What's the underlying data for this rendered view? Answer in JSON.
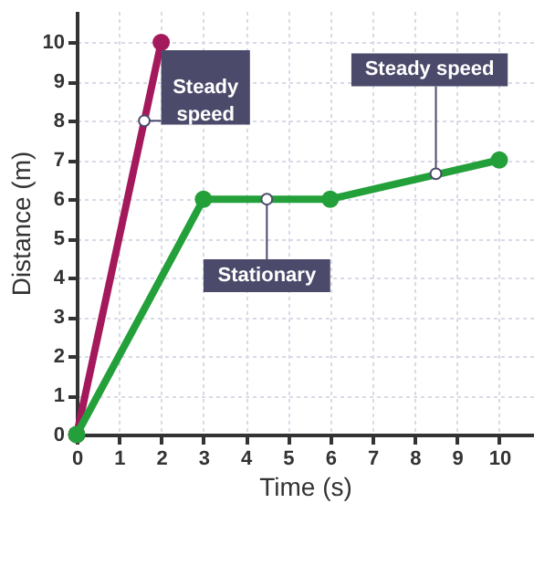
{
  "chart_data": {
    "type": "line",
    "xlabel": "Time (s)",
    "ylabel": "Distance (m)",
    "series": [
      {
        "color": "#a3195b",
        "x": [
          0,
          2
        ],
        "values": [
          0,
          10
        ]
      },
      {
        "color": "#23a03a",
        "x": [
          0,
          3,
          6,
          10
        ],
        "values": [
          0,
          6,
          6,
          7
        ]
      }
    ],
    "xlim": [
      0,
      10.8
    ],
    "ylim": [
      0,
      10.8
    ],
    "xticks": [
      0,
      1,
      2,
      3,
      4,
      5,
      6,
      7,
      8,
      9,
      10
    ],
    "yticks": [
      0,
      1,
      2,
      3,
      4,
      5,
      6,
      7,
      8,
      9,
      10
    ],
    "grid": true,
    "marker": "circle",
    "line_style": "solid",
    "annotations": [
      {
        "text": "Steady speed",
        "x": 1.6,
        "y": 8
      },
      {
        "text": "Steady speed",
        "x": 8.5,
        "y": 6.65
      },
      {
        "text": "Stationary",
        "x": 4.5,
        "y": 6
      }
    ]
  }
}
